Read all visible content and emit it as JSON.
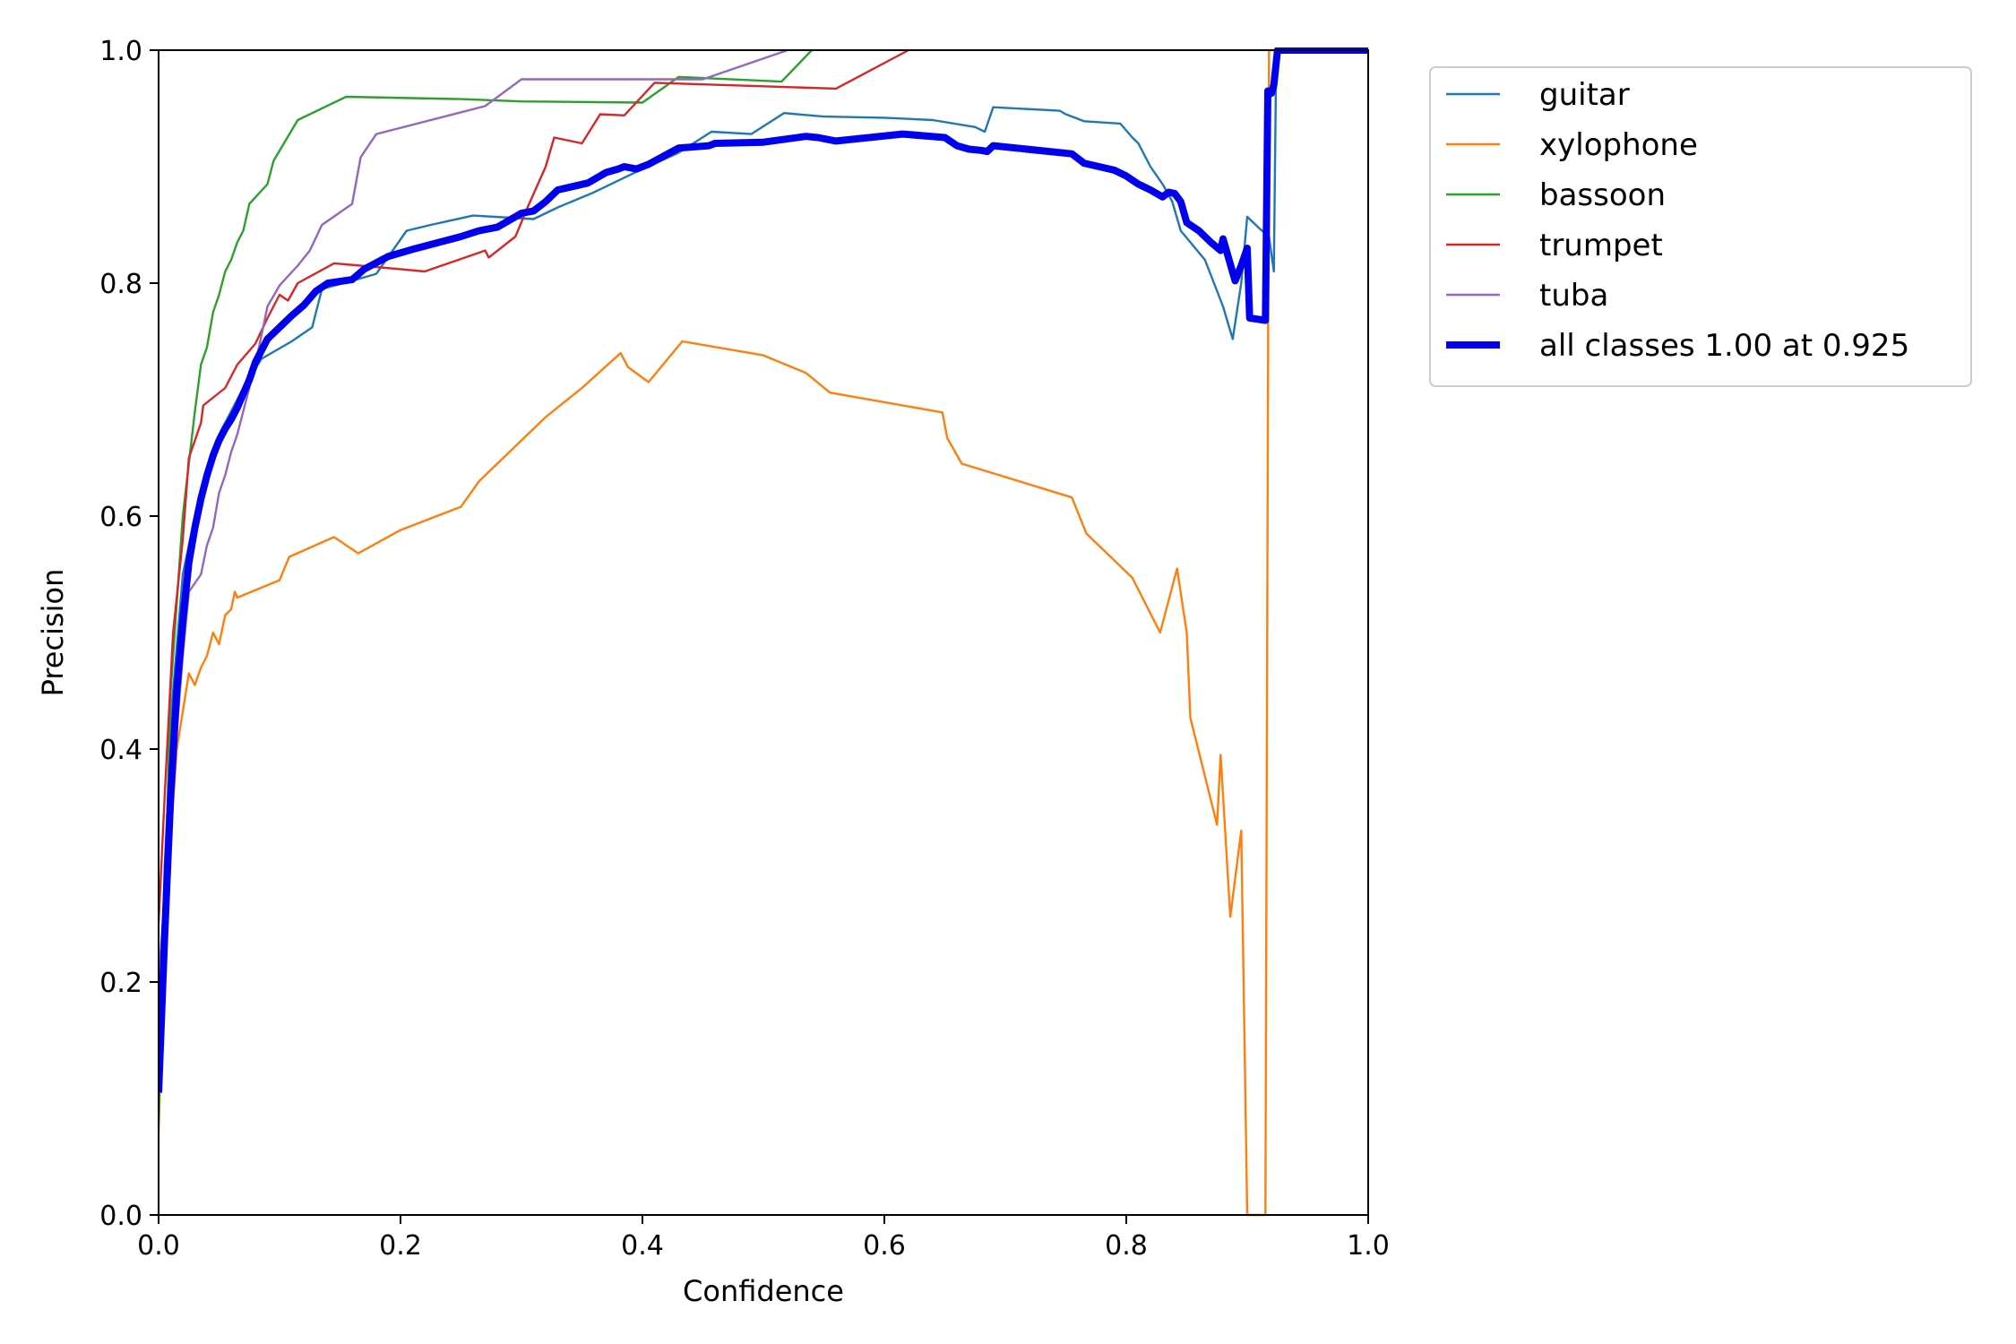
{
  "chart_data": {
    "type": "line",
    "title": "",
    "xlabel": "Confidence",
    "ylabel": "Precision",
    "xlim": [
      0,
      1
    ],
    "ylim": [
      0,
      1
    ],
    "xticks": [
      "0.0",
      "0.2",
      "0.4",
      "0.6",
      "0.8",
      "1.0"
    ],
    "yticks": [
      "0.0",
      "0.2",
      "0.4",
      "0.6",
      "0.8",
      "1.0"
    ],
    "grid": false,
    "legend_position": "outside-top-right",
    "series": [
      {
        "name": "guitar",
        "color": "#1f77b4",
        "bold": false,
        "points": [
          [
            0.0,
            0.1
          ],
          [
            0.005,
            0.3
          ],
          [
            0.012,
            0.45
          ],
          [
            0.02,
            0.55
          ],
          [
            0.03,
            0.6
          ],
          [
            0.05,
            0.67
          ],
          [
            0.07,
            0.71
          ],
          [
            0.085,
            0.735
          ],
          [
            0.11,
            0.75
          ],
          [
            0.127,
            0.762
          ],
          [
            0.135,
            0.795
          ],
          [
            0.16,
            0.802
          ],
          [
            0.18,
            0.808
          ],
          [
            0.205,
            0.845
          ],
          [
            0.225,
            0.85
          ],
          [
            0.26,
            0.858
          ],
          [
            0.31,
            0.855
          ],
          [
            0.33,
            0.865
          ],
          [
            0.36,
            0.878
          ],
          [
            0.4,
            0.898
          ],
          [
            0.43,
            0.912
          ],
          [
            0.457,
            0.93
          ],
          [
            0.49,
            0.928
          ],
          [
            0.517,
            0.946
          ],
          [
            0.55,
            0.943
          ],
          [
            0.6,
            0.942
          ],
          [
            0.64,
            0.94
          ],
          [
            0.675,
            0.934
          ],
          [
            0.683,
            0.93
          ],
          [
            0.69,
            0.951
          ],
          [
            0.745,
            0.948
          ],
          [
            0.75,
            0.945
          ],
          [
            0.765,
            0.939
          ],
          [
            0.795,
            0.937
          ],
          [
            0.805,
            0.925
          ],
          [
            0.81,
            0.92
          ],
          [
            0.82,
            0.9
          ],
          [
            0.83,
            0.885
          ],
          [
            0.838,
            0.87
          ],
          [
            0.845,
            0.845
          ],
          [
            0.865,
            0.82
          ],
          [
            0.88,
            0.78
          ],
          [
            0.888,
            0.752
          ],
          [
            0.895,
            0.8
          ],
          [
            0.9,
            0.857
          ],
          [
            0.91,
            0.847
          ],
          [
            0.918,
            0.84
          ],
          [
            0.922,
            0.81
          ],
          [
            0.924,
            1.0
          ],
          [
            1.0,
            1.0
          ]
        ]
      },
      {
        "name": "xylophone",
        "color": "#ff7f0e",
        "bold": false,
        "points": [
          [
            0.0,
            0.07
          ],
          [
            0.005,
            0.25
          ],
          [
            0.015,
            0.4
          ],
          [
            0.025,
            0.465
          ],
          [
            0.03,
            0.455
          ],
          [
            0.035,
            0.47
          ],
          [
            0.04,
            0.48
          ],
          [
            0.045,
            0.5
          ],
          [
            0.05,
            0.49
          ],
          [
            0.055,
            0.515
          ],
          [
            0.06,
            0.52
          ],
          [
            0.063,
            0.535
          ],
          [
            0.065,
            0.53
          ],
          [
            0.1,
            0.545
          ],
          [
            0.108,
            0.565
          ],
          [
            0.145,
            0.582
          ],
          [
            0.165,
            0.568
          ],
          [
            0.2,
            0.588
          ],
          [
            0.25,
            0.608
          ],
          [
            0.265,
            0.63
          ],
          [
            0.29,
            0.655
          ],
          [
            0.32,
            0.685
          ],
          [
            0.35,
            0.71
          ],
          [
            0.382,
            0.74
          ],
          [
            0.388,
            0.728
          ],
          [
            0.405,
            0.715
          ],
          [
            0.433,
            0.75
          ],
          [
            0.5,
            0.738
          ],
          [
            0.535,
            0.723
          ],
          [
            0.555,
            0.706
          ],
          [
            0.648,
            0.689
          ],
          [
            0.652,
            0.667
          ],
          [
            0.664,
            0.645
          ],
          [
            0.755,
            0.616
          ],
          [
            0.767,
            0.585
          ],
          [
            0.805,
            0.547
          ],
          [
            0.828,
            0.5
          ],
          [
            0.842,
            0.555
          ],
          [
            0.85,
            0.5
          ],
          [
            0.853,
            0.427
          ],
          [
            0.875,
            0.335
          ],
          [
            0.878,
            0.395
          ],
          [
            0.886,
            0.256
          ],
          [
            0.895,
            0.33
          ],
          [
            0.9,
            0.0
          ],
          [
            0.915,
            0.0
          ],
          [
            0.918,
            1.0
          ],
          [
            1.0,
            1.0
          ]
        ]
      },
      {
        "name": "bassoon",
        "color": "#2ca02c",
        "bold": false,
        "points": [
          [
            0.0,
            0.08
          ],
          [
            0.01,
            0.45
          ],
          [
            0.02,
            0.6
          ],
          [
            0.03,
            0.69
          ],
          [
            0.035,
            0.73
          ],
          [
            0.04,
            0.745
          ],
          [
            0.045,
            0.775
          ],
          [
            0.05,
            0.79
          ],
          [
            0.055,
            0.81
          ],
          [
            0.06,
            0.82
          ],
          [
            0.065,
            0.835
          ],
          [
            0.07,
            0.845
          ],
          [
            0.075,
            0.868
          ],
          [
            0.09,
            0.885
          ],
          [
            0.095,
            0.905
          ],
          [
            0.115,
            0.94
          ],
          [
            0.155,
            0.96
          ],
          [
            0.25,
            0.958
          ],
          [
            0.3,
            0.956
          ],
          [
            0.4,
            0.955
          ],
          [
            0.43,
            0.977
          ],
          [
            0.515,
            0.973
          ],
          [
            0.54,
            1.0
          ]
        ]
      },
      {
        "name": "trumpet",
        "color": "#d62728",
        "bold": false,
        "points": [
          [
            0.0,
            0.25
          ],
          [
            0.005,
            0.36
          ],
          [
            0.01,
            0.46
          ],
          [
            0.012,
            0.5
          ],
          [
            0.02,
            0.58
          ],
          [
            0.025,
            0.65
          ],
          [
            0.035,
            0.68
          ],
          [
            0.037,
            0.695
          ],
          [
            0.055,
            0.71
          ],
          [
            0.065,
            0.73
          ],
          [
            0.08,
            0.748
          ],
          [
            0.09,
            0.77
          ],
          [
            0.1,
            0.79
          ],
          [
            0.107,
            0.785
          ],
          [
            0.115,
            0.8
          ],
          [
            0.145,
            0.817
          ],
          [
            0.2,
            0.812
          ],
          [
            0.22,
            0.81
          ],
          [
            0.27,
            0.828
          ],
          [
            0.273,
            0.822
          ],
          [
            0.295,
            0.84
          ],
          [
            0.305,
            0.865
          ],
          [
            0.32,
            0.9
          ],
          [
            0.327,
            0.925
          ],
          [
            0.35,
            0.92
          ],
          [
            0.365,
            0.945
          ],
          [
            0.385,
            0.944
          ],
          [
            0.41,
            0.972
          ],
          [
            0.5,
            0.969
          ],
          [
            0.56,
            0.967
          ],
          [
            0.62,
            1.0
          ]
        ]
      },
      {
        "name": "tuba",
        "color": "#9467bd",
        "bold": false,
        "points": [
          [
            0.0,
            0.2
          ],
          [
            0.01,
            0.35
          ],
          [
            0.02,
            0.48
          ],
          [
            0.025,
            0.535
          ],
          [
            0.035,
            0.55
          ],
          [
            0.04,
            0.575
          ],
          [
            0.045,
            0.59
          ],
          [
            0.05,
            0.62
          ],
          [
            0.055,
            0.635
          ],
          [
            0.06,
            0.655
          ],
          [
            0.065,
            0.67
          ],
          [
            0.07,
            0.69
          ],
          [
            0.08,
            0.73
          ],
          [
            0.09,
            0.78
          ],
          [
            0.1,
            0.798
          ],
          [
            0.115,
            0.815
          ],
          [
            0.125,
            0.828
          ],
          [
            0.135,
            0.85
          ],
          [
            0.16,
            0.868
          ],
          [
            0.167,
            0.908
          ],
          [
            0.18,
            0.928
          ],
          [
            0.27,
            0.952
          ],
          [
            0.3,
            0.975
          ],
          [
            0.45,
            0.975
          ],
          [
            0.52,
            1.0
          ]
        ]
      },
      {
        "name": "all classes 1.00 at 0.925",
        "color": "#0000ee",
        "bold": true,
        "points": [
          [
            0.0,
            0.105
          ],
          [
            0.005,
            0.24
          ],
          [
            0.01,
            0.36
          ],
          [
            0.015,
            0.45
          ],
          [
            0.02,
            0.51
          ],
          [
            0.025,
            0.56
          ],
          [
            0.03,
            0.59
          ],
          [
            0.035,
            0.615
          ],
          [
            0.04,
            0.635
          ],
          [
            0.045,
            0.652
          ],
          [
            0.05,
            0.665
          ],
          [
            0.055,
            0.675
          ],
          [
            0.06,
            0.683
          ],
          [
            0.065,
            0.693
          ],
          [
            0.07,
            0.705
          ],
          [
            0.075,
            0.717
          ],
          [
            0.08,
            0.732
          ],
          [
            0.09,
            0.752
          ],
          [
            0.1,
            0.762
          ],
          [
            0.11,
            0.772
          ],
          [
            0.12,
            0.781
          ],
          [
            0.13,
            0.793
          ],
          [
            0.14,
            0.8
          ],
          [
            0.16,
            0.803
          ],
          [
            0.17,
            0.812
          ],
          [
            0.19,
            0.823
          ],
          [
            0.21,
            0.829
          ],
          [
            0.25,
            0.84
          ],
          [
            0.265,
            0.845
          ],
          [
            0.28,
            0.848
          ],
          [
            0.3,
            0.86
          ],
          [
            0.31,
            0.862
          ],
          [
            0.32,
            0.87
          ],
          [
            0.33,
            0.88
          ],
          [
            0.355,
            0.886
          ],
          [
            0.37,
            0.895
          ],
          [
            0.38,
            0.898
          ],
          [
            0.385,
            0.9
          ],
          [
            0.395,
            0.898
          ],
          [
            0.405,
            0.902
          ],
          [
            0.43,
            0.916
          ],
          [
            0.455,
            0.918
          ],
          [
            0.46,
            0.92
          ],
          [
            0.5,
            0.921
          ],
          [
            0.535,
            0.926
          ],
          [
            0.545,
            0.925
          ],
          [
            0.56,
            0.922
          ],
          [
            0.615,
            0.928
          ],
          [
            0.65,
            0.925
          ],
          [
            0.66,
            0.918
          ],
          [
            0.67,
            0.915
          ],
          [
            0.68,
            0.914
          ],
          [
            0.685,
            0.913
          ],
          [
            0.69,
            0.918
          ],
          [
            0.755,
            0.911
          ],
          [
            0.765,
            0.903
          ],
          [
            0.79,
            0.897
          ],
          [
            0.8,
            0.892
          ],
          [
            0.81,
            0.885
          ],
          [
            0.82,
            0.88
          ],
          [
            0.83,
            0.874
          ],
          [
            0.835,
            0.878
          ],
          [
            0.84,
            0.877
          ],
          [
            0.845,
            0.87
          ],
          [
            0.85,
            0.852
          ],
          [
            0.86,
            0.845
          ],
          [
            0.87,
            0.835
          ],
          [
            0.878,
            0.828
          ],
          [
            0.88,
            0.838
          ],
          [
            0.89,
            0.802
          ],
          [
            0.895,
            0.815
          ],
          [
            0.9,
            0.83
          ],
          [
            0.902,
            0.77
          ],
          [
            0.915,
            0.768
          ],
          [
            0.917,
            0.965
          ],
          [
            0.92,
            0.963
          ],
          [
            0.922,
            0.97
          ],
          [
            0.925,
            1.0
          ],
          [
            1.0,
            1.0
          ]
        ]
      }
    ]
  }
}
